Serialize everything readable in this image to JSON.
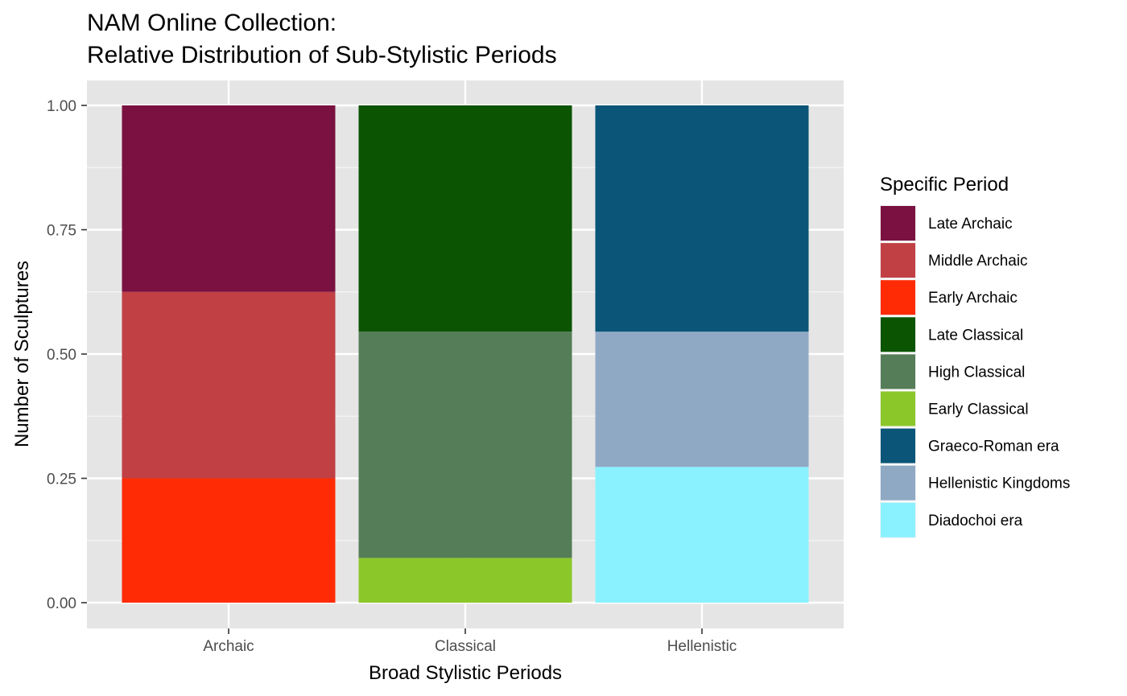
{
  "chart_data": {
    "type": "bar",
    "stacked": true,
    "title_lines": [
      "NAM Online Collection:",
      "Relative Distribution of Sub-Stylistic Periods"
    ],
    "xlabel": "Broad Stylistic Periods",
    "ylabel": "Number of Sculptures",
    "ylim": [
      0,
      1
    ],
    "yticks": [
      "0.00",
      "0.25",
      "0.50",
      "0.75",
      "1.00"
    ],
    "ytick_values": [
      0,
      0.25,
      0.5,
      0.75,
      1.0
    ],
    "grid": true,
    "legend_position": "right",
    "legend_title": "Specific Period",
    "categories": [
      "Archaic",
      "Classical",
      "Hellenistic"
    ],
    "series": [
      {
        "name": "Late Archaic",
        "color": "#7a1141",
        "values": [
          0.375,
          0,
          0
        ]
      },
      {
        "name": "Middle Archaic",
        "color": "#c04044",
        "values": [
          0.375,
          0,
          0
        ]
      },
      {
        "name": "Early Archaic",
        "color": "#ff2b05",
        "values": [
          0.25,
          0,
          0
        ]
      },
      {
        "name": "Late Classical",
        "color": "#0b5402",
        "values": [
          0,
          0.455,
          0
        ]
      },
      {
        "name": "High Classical",
        "color": "#557d58",
        "values": [
          0,
          0.455,
          0
        ]
      },
      {
        "name": "Early Classical",
        "color": "#8cc72a",
        "values": [
          0,
          0.09,
          0
        ]
      },
      {
        "name": "Graeco-Roman era",
        "color": "#0a5578",
        "values": [
          0,
          0,
          0.455
        ]
      },
      {
        "name": "Hellenistic Kingdoms",
        "color": "#8fa9c5",
        "values": [
          0,
          0,
          0.272
        ]
      },
      {
        "name": "Diadochoi era",
        "color": "#8af2ff",
        "values": [
          0,
          0,
          0.273
        ]
      }
    ]
  }
}
